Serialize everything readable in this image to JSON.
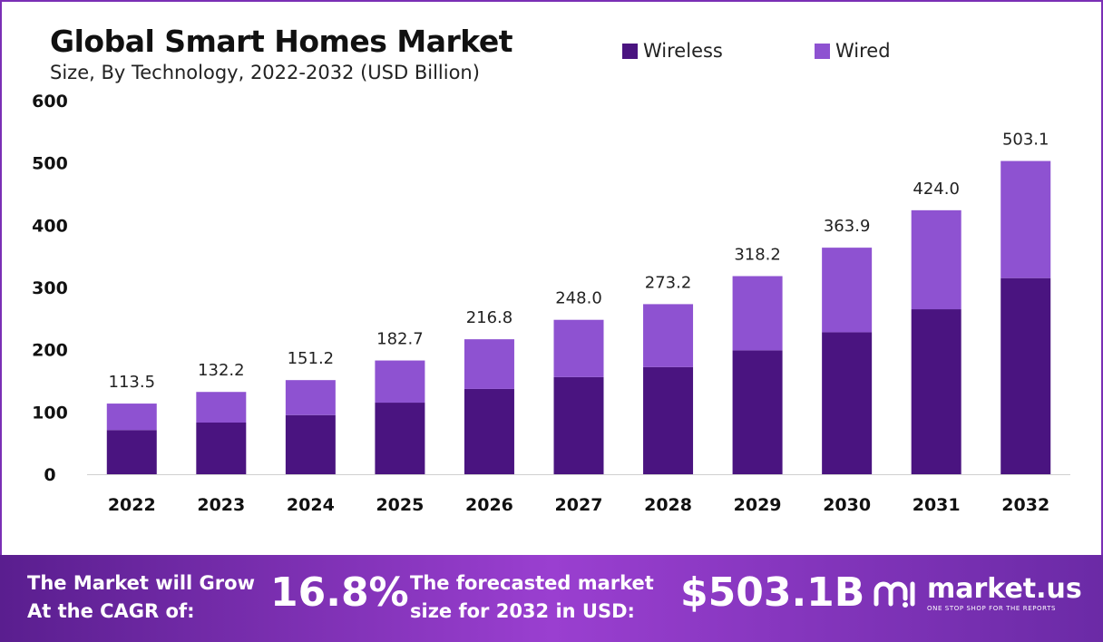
{
  "title": "Global Smart Homes Market",
  "subtitle": "Size, By Technology, 2022-2032 (USD Billion)",
  "colors": {
    "wireless": "#4a1480",
    "wired": "#8e52d1",
    "banner_start": "#5a1e8f",
    "banner_end": "#9a3fd0"
  },
  "legend": [
    {
      "label": "Wireless",
      "color": "#4a1480"
    },
    {
      "label": "Wired",
      "color": "#8e52d1"
    }
  ],
  "chart_data": {
    "type": "bar",
    "stacked": true,
    "categories": [
      "2022",
      "2023",
      "2024",
      "2025",
      "2026",
      "2027",
      "2028",
      "2029",
      "2030",
      "2031",
      "2032"
    ],
    "series": [
      {
        "name": "Wireless",
        "values": [
          71,
          83,
          95,
          115,
          137,
          156,
          172,
          199,
          228,
          265,
          315
        ]
      },
      {
        "name": "Wired",
        "values": [
          42.5,
          49.2,
          56.2,
          67.7,
          79.8,
          92.0,
          101.2,
          119.2,
          135.9,
          159.0,
          188.1
        ]
      }
    ],
    "totals_labels": [
      "113.5",
      "132.2",
      "151.2",
      "182.7",
      "216.8",
      "248.0",
      "273.2",
      "318.2",
      "363.9",
      "424.0",
      "503.1"
    ],
    "yticks": [
      "0",
      "100",
      "200",
      "300",
      "400",
      "500",
      "600"
    ],
    "ylim": [
      0,
      600
    ],
    "legend_position": "top-right",
    "grid": false
  },
  "banner": {
    "cagr_label_line1": "The Market will Grow",
    "cagr_label_line2": "At the CAGR of:",
    "cagr_value": "16.8%",
    "forecast_label_line1": "The forecasted market",
    "forecast_label_line2": "size for 2032 in USD:",
    "forecast_value": "$503.1B"
  },
  "logo": {
    "name": "market.us",
    "tagline": "ONE STOP SHOP FOR THE REPORTS"
  }
}
